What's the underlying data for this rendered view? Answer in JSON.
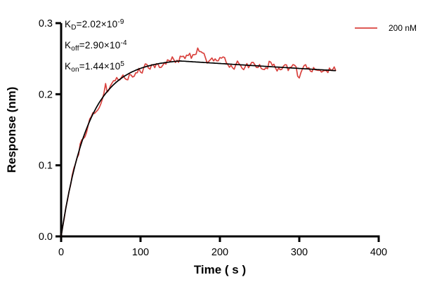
{
  "figure": {
    "background": "#ffffff"
  },
  "colors": {
    "trace": "#d9423e",
    "fit": "#000000",
    "axis": "#000000",
    "text": "#000000"
  },
  "annotations": {
    "lines": [
      {
        "base": "K",
        "sub": "D",
        "eq": "=2.02×10",
        "exp": "-9"
      },
      {
        "base": "K",
        "sub": "off",
        "eq": "=2.90×10",
        "exp": "-4"
      },
      {
        "base": "K",
        "sub": "on",
        "eq": "=1.44×10",
        "exp": "5"
      }
    ]
  },
  "chart_data": {
    "type": "line",
    "title": "",
    "xlabel": "Time ( s )",
    "ylabel": "Response (nm)",
    "xlim": [
      0,
      400
    ],
    "ylim": [
      0,
      0.3
    ],
    "xticks": [
      0,
      100,
      200,
      300,
      400
    ],
    "xtick_labels": [
      "0",
      "100",
      "200",
      "300",
      "400"
    ],
    "yticks": [
      0,
      0.1,
      0.2,
      0.3
    ],
    "ytick_labels": [
      "0.0",
      "0.1",
      "0.2",
      "0.3"
    ],
    "grid": false,
    "legend_position": "top-right",
    "legend": [
      {
        "label": "200 nM",
        "color": "#d9423e"
      }
    ],
    "kinetics": {
      "KD_M": 2.02e-09,
      "koff_per_s": 0.00029,
      "kon_per_Ms": 144000.0,
      "concentration_nM": 200
    },
    "series": [
      {
        "name": "200 nM",
        "role": "measured",
        "color": "#d9423e",
        "t_start_s": 0,
        "t_end_s": 346,
        "noise": {
          "seed": 13,
          "step_s": 2,
          "base_amp": 0.005,
          "spike_prob": 0.12,
          "spike_amp": 0.012,
          "corr": 0.5
        },
        "deviations": [
          {
            "center": 170,
            "width": 40,
            "amp": 0.006
          },
          {
            "center": 112,
            "width": 25,
            "amp": -0.0035
          }
        ]
      },
      {
        "name": "fit",
        "role": "fit",
        "color": "#000000",
        "model": {
          "req": 0.25,
          "kobs": 0.0291,
          "t_assoc_end_s": 150,
          "r0": 0.2468,
          "koff": 0.00029,
          "t_end_s": 346
        },
        "points": [
          [
            0,
            0
          ],
          [
            10,
            0.063
          ],
          [
            20,
            0.11
          ],
          [
            30,
            0.146
          ],
          [
            40,
            0.172
          ],
          [
            50,
            0.192
          ],
          [
            60,
            0.206
          ],
          [
            70,
            0.217
          ],
          [
            80,
            0.226
          ],
          [
            90,
            0.232
          ],
          [
            100,
            0.236
          ],
          [
            110,
            0.24
          ],
          [
            120,
            0.242
          ],
          [
            130,
            0.244
          ],
          [
            140,
            0.246
          ],
          [
            150,
            0.247
          ],
          [
            175,
            0.245
          ],
          [
            200,
            0.243
          ],
          [
            225,
            0.242
          ],
          [
            250,
            0.24
          ],
          [
            275,
            0.238
          ],
          [
            300,
            0.236
          ],
          [
            325,
            0.235
          ],
          [
            346,
            0.233
          ]
        ]
      }
    ]
  }
}
